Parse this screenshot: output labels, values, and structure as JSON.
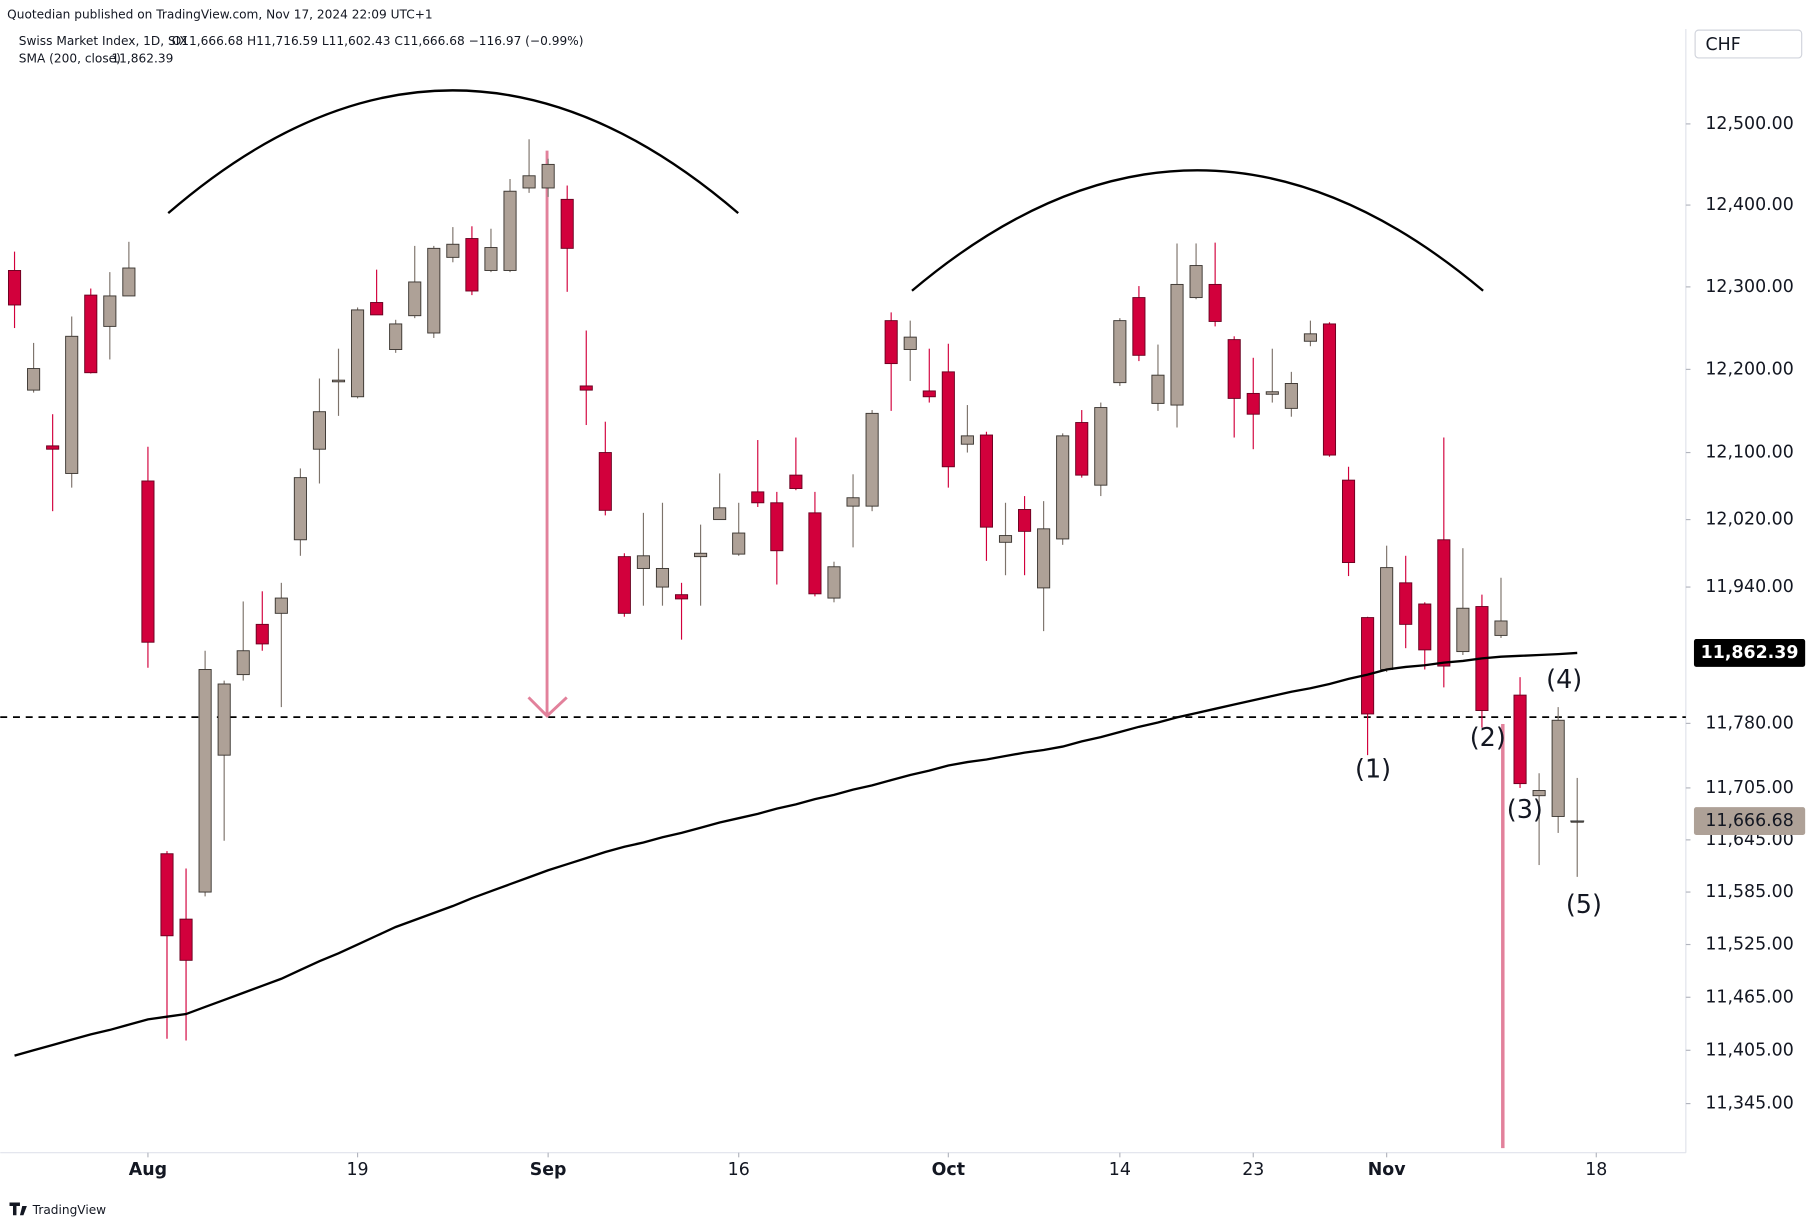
{
  "chart_data": {
    "type": "candlestick",
    "publisher": "Quotedian published on TradingView.com, Nov 17, 2024 22:09 UTC+1",
    "symbol": "Swiss Market Index, 1D, SIX",
    "ohlc_text": "O11,666.68 H11,716.59 L11,602.43 C11,666.68 −116.97 (−0.99%)",
    "currency": "CHF",
    "logo": "TradingView",
    "log_scale": true,
    "grid": false,
    "up_color": "#aea197",
    "down_color": "#d2003c",
    "open": [
      12320,
      12175,
      12108,
      12075,
      12290,
      12252,
      12289,
      12066,
      11629,
      11554,
      11585,
      11743,
      11837,
      11896,
      11909,
      11996,
      12104,
      12185,
      12167,
      12281,
      12224,
      12265,
      12244,
      12336,
      12359,
      12320,
      12320,
      12421,
      12421,
      12407,
      12180,
      12100,
      11976,
      11962,
      11940,
      11931,
      11976,
      12020,
      11979,
      12053,
      12040,
      12073,
      12028,
      11927,
      12036,
      12036,
      12259,
      12224,
      12174,
      12197,
      12110,
      12121,
      11993,
      12032,
      11939,
      11997,
      12136,
      12061,
      12184,
      12287,
      12159,
      12157,
      12287,
      12303,
      12236,
      12171,
      12170,
      12153,
      12234,
      12255,
      12067,
      11904,
      11843,
      11945,
      11920,
      11996,
      11864,
      11917,
      11883,
      11813,
      11696,
      11672,
      11666.68
    ],
    "high": [
      12343,
      12232,
      12146,
      12264,
      12298,
      12318,
      12355,
      12107,
      11632,
      11612,
      11865,
      11830,
      11923,
      11935,
      11945,
      12081,
      12189,
      12225,
      12275,
      12321,
      12260,
      12350,
      12350,
      12373,
      12374,
      12371,
      12432,
      12481,
      12457,
      12424,
      12247,
      12137,
      11980,
      12028,
      12040,
      11945,
      12014,
      12075,
      12040,
      12115,
      12053,
      12118,
      12053,
      11970,
      12074,
      12151,
      12269,
      12259,
      12225,
      12231,
      12157,
      12125,
      12040,
      12048,
      12042,
      12123,
      12151,
      12160,
      12262,
      12301,
      12230,
      12353,
      12353,
      12354,
      12240,
      12214,
      12225,
      12197,
      12259,
      12257,
      12083,
      11905,
      11989,
      11977,
      11922,
      12118,
      11986,
      11931,
      11951,
      11834,
      11722,
      11799,
      11716.59
    ],
    "low": [
      12250,
      12172,
      12030,
      12058,
      12195,
      12212,
      12289,
      11845,
      11418,
      11416,
      11580,
      11644,
      11830,
      11865,
      11799,
      11977,
      12063,
      12144,
      12165,
      12266,
      12220,
      12262,
      12238,
      12330,
      12290,
      12318,
      12318,
      12415,
      12410,
      12294,
      12133,
      12025,
      11905,
      11918,
      11918,
      11878,
      11918,
      12020,
      11977,
      12035,
      11943,
      12055,
      11929,
      11922,
      11987,
      12030,
      12150,
      12186,
      12160,
      12058,
      12100,
      11971,
      11954,
      11954,
      11888,
      11990,
      12070,
      12048,
      12180,
      12210,
      12150,
      12130,
      12285,
      12252,
      12118,
      12104,
      12160,
      12143,
      12228,
      12095,
      11953,
      11743,
      11840,
      11868,
      11843,
      11822,
      11860,
      11775,
      11880,
      11705,
      11616,
      11653,
      11602.43
    ],
    "close": [
      12278,
      12201,
      12104,
      12240,
      12196,
      12289,
      12323,
      11875,
      11535,
      11507,
      11843,
      11826,
      11865,
      11873,
      11927,
      12070,
      12149,
      12187,
      12272,
      12266,
      12255,
      12306,
      12347,
      12352,
      12295,
      12348,
      12417,
      12436,
      12450,
      12347,
      12175,
      12031,
      11909,
      11977,
      11962,
      11926,
      11980,
      12034,
      12004,
      12040,
      11983,
      12057,
      11932,
      11964,
      12046,
      12147,
      12207,
      12239,
      12167,
      12083,
      12120,
      12011,
      12001,
      12006,
      12009,
      12120,
      12073,
      12154,
      12259,
      12217,
      12193,
      12303,
      12326,
      12258,
      12165,
      12146,
      12173,
      12183,
      12243,
      12097,
      11969,
      11791,
      11963,
      11896,
      11866,
      11847,
      11915,
      11795,
      11900,
      11710,
      11702,
      11783.65,
      11666.68
    ],
    "last_price_label": "11,666.68",
    "sma": {
      "name": "SMA (200, close)",
      "color": "#000000",
      "value_label": "11,862.39",
      "values": [
        11399,
        11405,
        11411,
        11417,
        11423,
        11428,
        11434,
        11440,
        11443,
        11446,
        11454,
        11462,
        11470,
        11478,
        11486,
        11496,
        11506,
        11515,
        11525,
        11535,
        11545,
        11553,
        11561,
        11569,
        11578,
        11586,
        11594,
        11602,
        11610,
        11617,
        11624,
        11631,
        11637,
        11642,
        11648,
        11653,
        11659,
        11665,
        11670,
        11675,
        11681,
        11686,
        11692,
        11697,
        11703,
        11708,
        11714,
        11720,
        11725,
        11731,
        11735,
        11738,
        11742,
        11746,
        11749,
        11753,
        11759,
        11764,
        11770,
        11776,
        11781,
        11787,
        11792,
        11797,
        11802,
        11807,
        11812,
        11817,
        11821,
        11826,
        11832,
        11837,
        11843,
        11846,
        11848,
        11851,
        11853,
        11856,
        11858,
        11859,
        11860,
        11861,
        11862.39
      ]
    },
    "annotations": [
      "(1)",
      "(2)",
      "(3)",
      "(4)",
      "(5)"
    ],
    "xlim": [
      -0.75,
      87.7
    ],
    "xticks": [
      {
        "value": 7,
        "label": "Aug"
      },
      {
        "value": 18,
        "label": "19"
      },
      {
        "value": 28,
        "label": "Sep"
      },
      {
        "value": 38,
        "label": "16"
      },
      {
        "value": 49,
        "label": "Oct"
      },
      {
        "value": 58,
        "label": "14"
      },
      {
        "value": 65,
        "label": "23"
      },
      {
        "value": 72,
        "label": "Nov"
      },
      {
        "value": 83,
        "label": "18"
      }
    ],
    "ylim": [
      11290,
      12618
    ],
    "yticks": [
      {
        "value": 12500,
        "label": "12,500.00"
      },
      {
        "value": 12400,
        "label": "12,400.00"
      },
      {
        "value": 12300,
        "label": "12,300.00"
      },
      {
        "value": 12200,
        "label": "12,200.00"
      },
      {
        "value": 12100,
        "label": "12,100.00"
      },
      {
        "value": 12020,
        "label": "12,020.00"
      },
      {
        "value": 11940,
        "label": "11,940.00"
      },
      {
        "value": 11780,
        "label": "11,780.00"
      },
      {
        "value": 11705,
        "label": "11,705.00"
      },
      {
        "value": 11645,
        "label": "11,645.00"
      },
      {
        "value": 11585,
        "label": "11,585.00"
      },
      {
        "value": 11525,
        "label": "11,525.00"
      },
      {
        "value": 11465,
        "label": "11,465.00"
      },
      {
        "value": 11405,
        "label": "11,405.00"
      },
      {
        "value": 11345,
        "label": "11,345.00"
      }
    ]
  }
}
